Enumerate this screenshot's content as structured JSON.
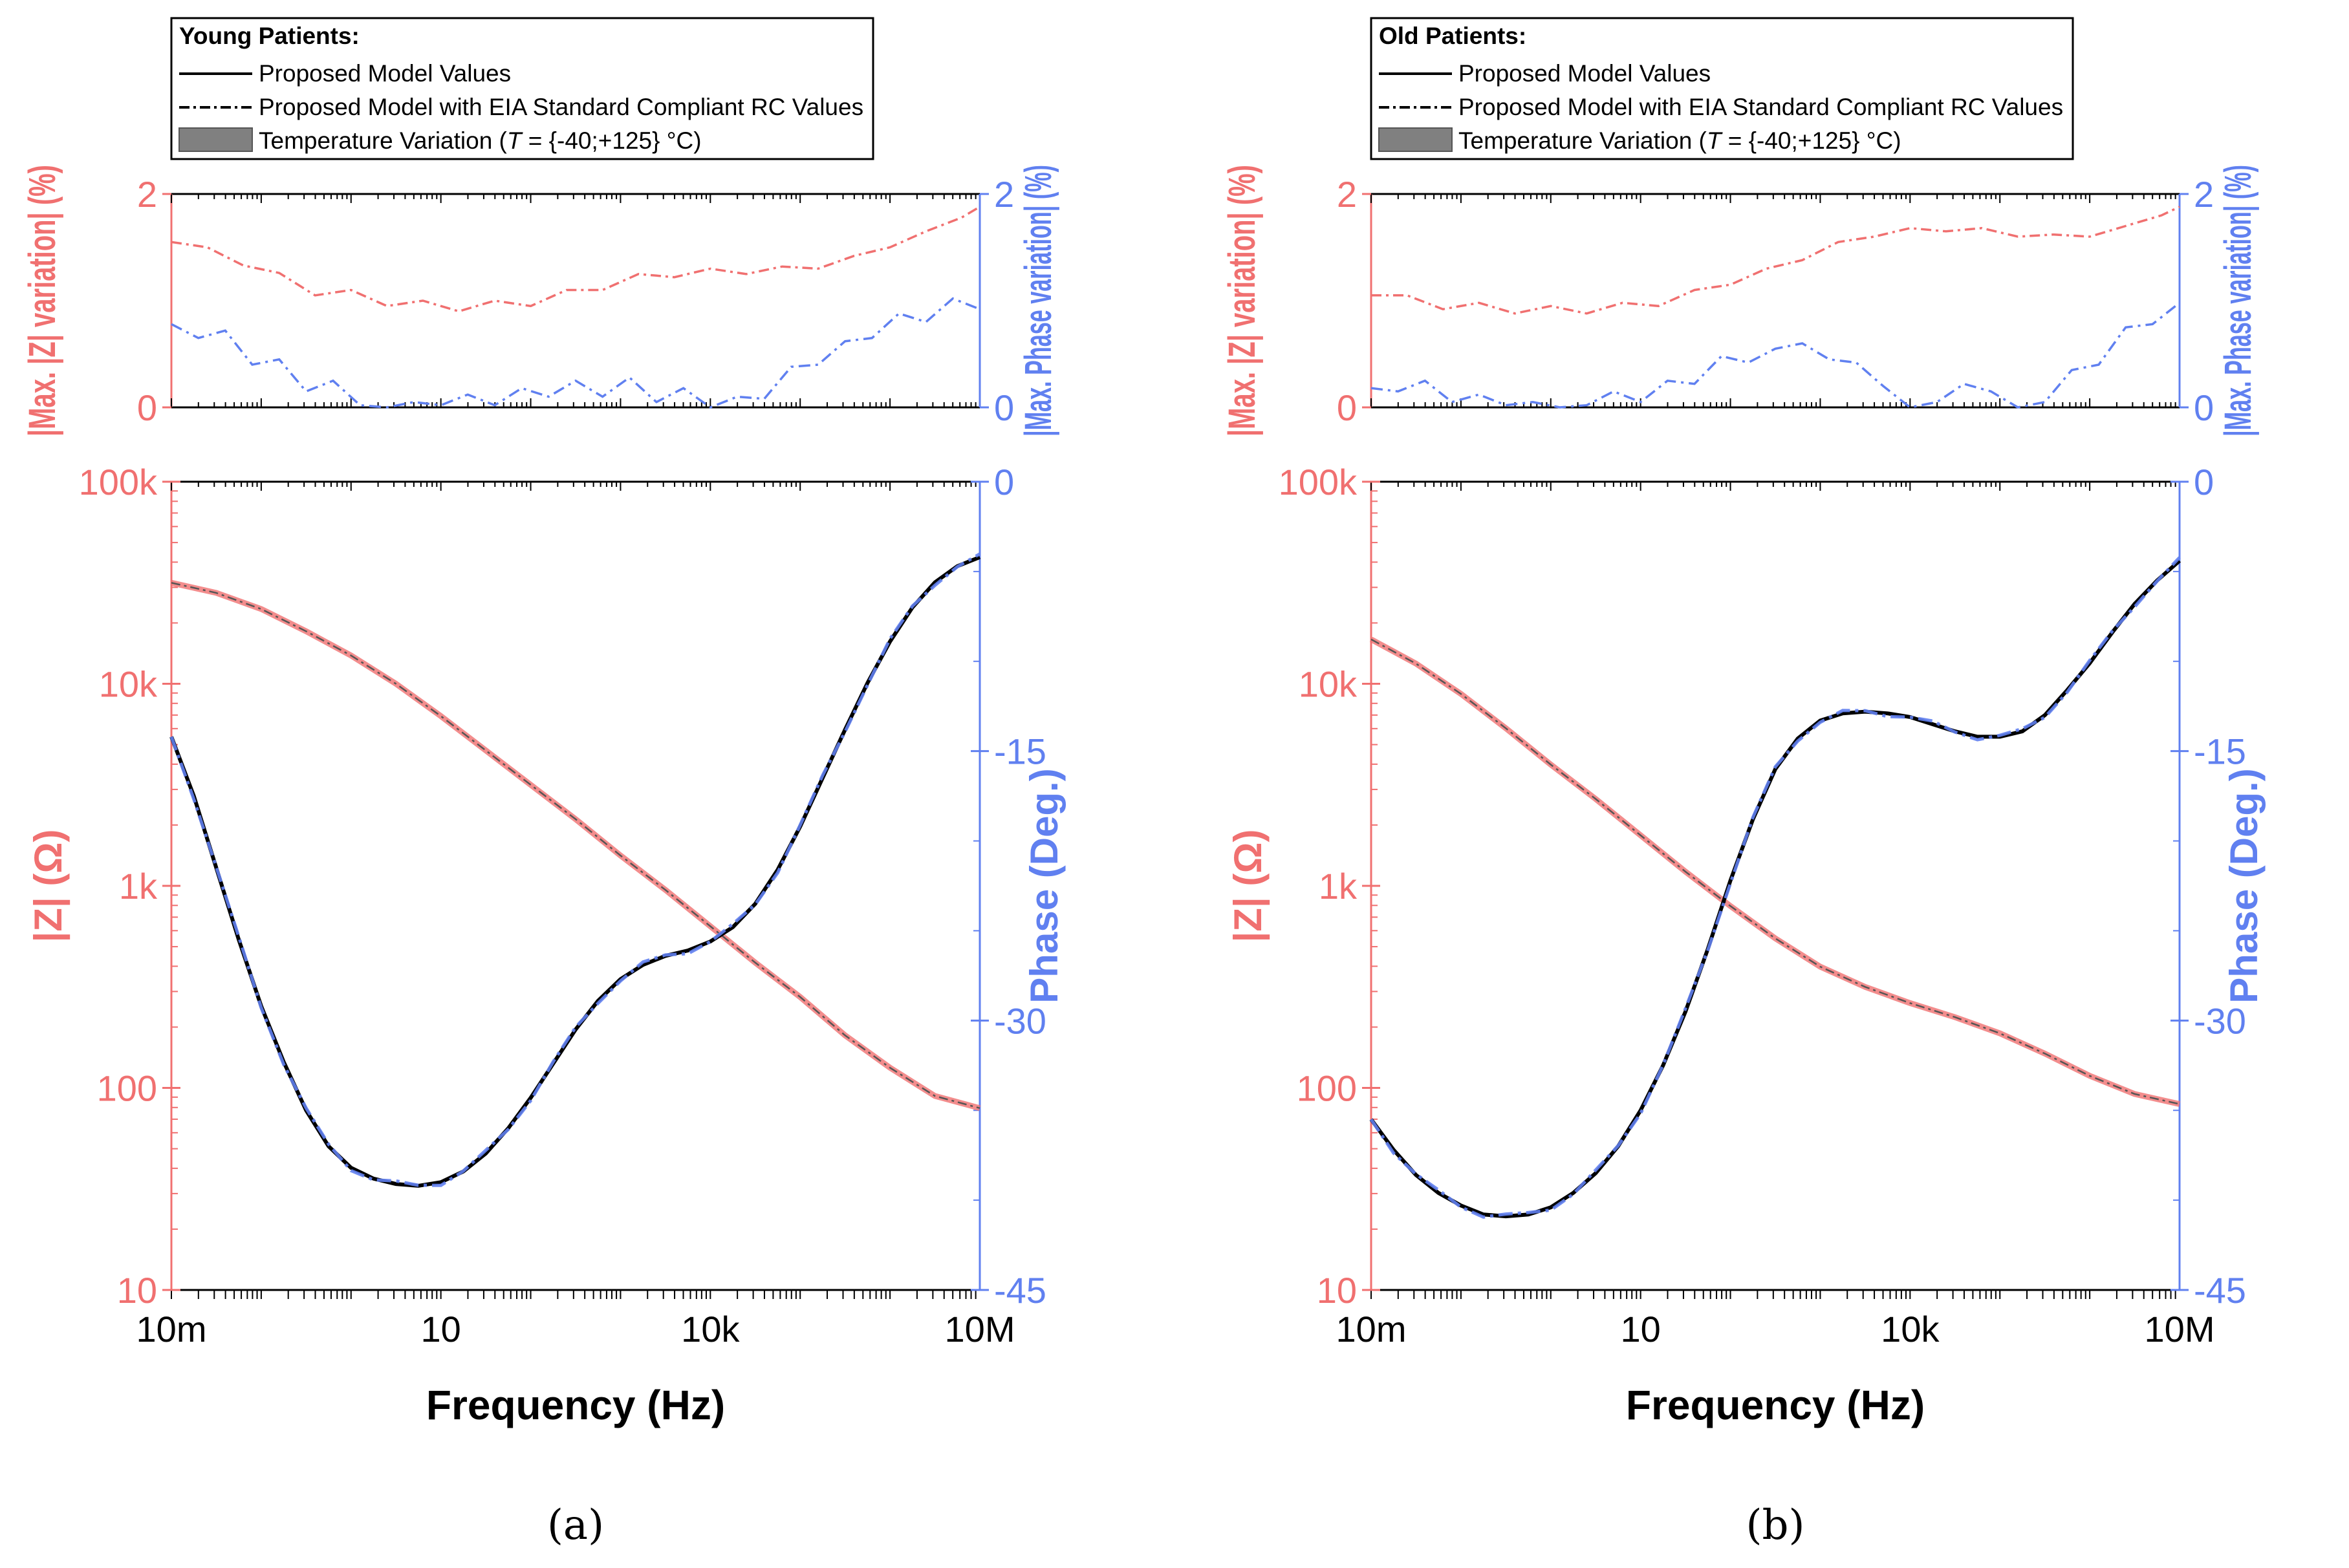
{
  "colors": {
    "magnitude": "#f07070",
    "phase": "#6080f0",
    "model": "#000000",
    "shade": "#808080",
    "frame": "#000000"
  },
  "chart_data": [
    {
      "type": "line",
      "panel_caption": "(a)",
      "legend": {
        "title": "Young Patients:",
        "entries": [
          "Proposed Model Values",
          "Proposed Model with EIA Standard Compliant RC Values"
        ],
        "temp_prefix": "Temperature Variation (",
        "temp_var": "T",
        "temp_suffix": " = {-40;+125} °C)"
      },
      "xlabel": "Frequency (Hz)",
      "x_log_range": [
        -2,
        7
      ],
      "x_ticks": [
        {
          "v": -2,
          "label": "10m"
        },
        {
          "v": 1,
          "label": "10"
        },
        {
          "v": 4,
          "label": "10k"
        },
        {
          "v": 7,
          "label": "10M"
        }
      ],
      "top": {
        "ylabel_left": "|Max. |Z| variation| (%)",
        "ylabel_right": "|Max. Phase variation| (%)",
        "ylim": [
          0,
          2
        ],
        "ticks": [
          "0",
          "2"
        ],
        "magnitude_variation": [
          [
            -2,
            1.55
          ],
          [
            -1.6,
            1.5
          ],
          [
            -1.2,
            1.33
          ],
          [
            -0.8,
            1.26
          ],
          [
            -0.4,
            1.05
          ],
          [
            0,
            1.1
          ],
          [
            0.4,
            0.95
          ],
          [
            0.8,
            1.0
          ],
          [
            1.2,
            0.9
          ],
          [
            1.6,
            1.0
          ],
          [
            2,
            0.95
          ],
          [
            2.4,
            1.1
          ],
          [
            2.8,
            1.1
          ],
          [
            3.2,
            1.25
          ],
          [
            3.6,
            1.22
          ],
          [
            4,
            1.3
          ],
          [
            4.4,
            1.25
          ],
          [
            4.8,
            1.32
          ],
          [
            5.2,
            1.3
          ],
          [
            5.6,
            1.42
          ],
          [
            6,
            1.5
          ],
          [
            6.4,
            1.65
          ],
          [
            6.8,
            1.78
          ],
          [
            7,
            1.88
          ]
        ],
        "phase_variation": [
          [
            -2,
            0.78
          ],
          [
            -1.7,
            0.65
          ],
          [
            -1.4,
            0.72
          ],
          [
            -1.1,
            0.4
          ],
          [
            -0.8,
            0.45
          ],
          [
            -0.5,
            0.15
          ],
          [
            -0.2,
            0.25
          ],
          [
            0.1,
            0.02
          ],
          [
            0.4,
            0.0
          ],
          [
            0.7,
            0.05
          ],
          [
            1,
            0.02
          ],
          [
            1.3,
            0.12
          ],
          [
            1.6,
            0.02
          ],
          [
            1.9,
            0.18
          ],
          [
            2.2,
            0.1
          ],
          [
            2.5,
            0.25
          ],
          [
            2.8,
            0.1
          ],
          [
            3.1,
            0.28
          ],
          [
            3.4,
            0.05
          ],
          [
            3.7,
            0.18
          ],
          [
            4,
            0.0
          ],
          [
            4.3,
            0.1
          ],
          [
            4.6,
            0.08
          ],
          [
            4.9,
            0.38
          ],
          [
            5.2,
            0.4
          ],
          [
            5.5,
            0.62
          ],
          [
            5.8,
            0.65
          ],
          [
            6.1,
            0.88
          ],
          [
            6.4,
            0.8
          ],
          [
            6.7,
            1.02
          ],
          [
            7,
            0.92
          ]
        ]
      },
      "bottom": {
        "ylabel_left": "|Z| (Ω)",
        "ylabel_right": "Phase (Deg.)",
        "z_log_range": [
          1,
          5
        ],
        "z_ticks": [
          {
            "v": 1,
            "label": "10"
          },
          {
            "v": 2,
            "label": "100"
          },
          {
            "v": 3,
            "label": "1k"
          },
          {
            "v": 4,
            "label": "10k"
          },
          {
            "v": 5,
            "label": "100k"
          }
        ],
        "phase_range": [
          -45,
          0
        ],
        "phase_ticks": [
          "0",
          "-15",
          "-30",
          "-45"
        ],
        "magnitude_log": [
          [
            -2,
            4.5
          ],
          [
            -1.5,
            4.45
          ],
          [
            -1,
            4.37
          ],
          [
            -0.5,
            4.26
          ],
          [
            0,
            4.14
          ],
          [
            0.5,
            4.0
          ],
          [
            1,
            3.84
          ],
          [
            1.5,
            3.67
          ],
          [
            2,
            3.5
          ],
          [
            2.5,
            3.33
          ],
          [
            3,
            3.15
          ],
          [
            3.5,
            2.98
          ],
          [
            4,
            2.8
          ],
          [
            4.5,
            2.62
          ],
          [
            5,
            2.45
          ],
          [
            5.5,
            2.26
          ],
          [
            6,
            2.1
          ],
          [
            6.5,
            1.96
          ],
          [
            7,
            1.9
          ]
        ],
        "phase": [
          [
            -2,
            -14.2
          ],
          [
            -1.75,
            -17.5
          ],
          [
            -1.5,
            -21.5
          ],
          [
            -1.25,
            -25.5
          ],
          [
            -1,
            -29.2
          ],
          [
            -0.75,
            -32.3
          ],
          [
            -0.5,
            -35.0
          ],
          [
            -0.25,
            -37.0
          ],
          [
            0,
            -38.2
          ],
          [
            0.25,
            -38.8
          ],
          [
            0.5,
            -39.1
          ],
          [
            0.75,
            -39.2
          ],
          [
            1,
            -39.0
          ],
          [
            1.25,
            -38.4
          ],
          [
            1.5,
            -37.4
          ],
          [
            1.75,
            -36.0
          ],
          [
            2,
            -34.3
          ],
          [
            2.25,
            -32.4
          ],
          [
            2.5,
            -30.5
          ],
          [
            2.75,
            -28.9
          ],
          [
            3,
            -27.7
          ],
          [
            3.25,
            -26.9
          ],
          [
            3.5,
            -26.4
          ],
          [
            3.75,
            -26.1
          ],
          [
            4,
            -25.6
          ],
          [
            4.25,
            -24.8
          ],
          [
            4.5,
            -23.5
          ],
          [
            4.75,
            -21.6
          ],
          [
            5,
            -19.2
          ],
          [
            5.25,
            -16.5
          ],
          [
            5.5,
            -13.8
          ],
          [
            5.75,
            -11.2
          ],
          [
            6,
            -8.9
          ],
          [
            6.25,
            -7.0
          ],
          [
            6.5,
            -5.6
          ],
          [
            6.75,
            -4.7
          ],
          [
            7,
            -4.2
          ]
        ]
      }
    },
    {
      "type": "line",
      "panel_caption": "(b)",
      "legend": {
        "title": "Old Patients:",
        "entries": [
          "Proposed Model Values",
          "Proposed Model with EIA Standard Compliant RC Values"
        ],
        "temp_prefix": "Temperature Variation (",
        "temp_var": "T",
        "temp_suffix": " = {-40;+125} °C)"
      },
      "xlabel": "Frequency (Hz)",
      "x_log_range": [
        -2,
        7
      ],
      "x_ticks": [
        {
          "v": -2,
          "label": "10m"
        },
        {
          "v": 1,
          "label": "10"
        },
        {
          "v": 4,
          "label": "10k"
        },
        {
          "v": 7,
          "label": "10M"
        }
      ],
      "top": {
        "ylabel_left": "|Max. |Z| variation| (%)",
        "ylabel_right": "|Max. Phase variation| (%)",
        "ylim": [
          0,
          2
        ],
        "ticks": [
          "0",
          "2"
        ],
        "magnitude_variation": [
          [
            -2,
            1.05
          ],
          [
            -1.6,
            1.05
          ],
          [
            -1.2,
            0.92
          ],
          [
            -0.8,
            0.98
          ],
          [
            -0.4,
            0.88
          ],
          [
            0,
            0.95
          ],
          [
            0.4,
            0.88
          ],
          [
            0.8,
            0.98
          ],
          [
            1.2,
            0.95
          ],
          [
            1.6,
            1.1
          ],
          [
            2,
            1.15
          ],
          [
            2.4,
            1.3
          ],
          [
            2.8,
            1.38
          ],
          [
            3.2,
            1.55
          ],
          [
            3.6,
            1.6
          ],
          [
            4,
            1.68
          ],
          [
            4.4,
            1.65
          ],
          [
            4.8,
            1.68
          ],
          [
            5.2,
            1.6
          ],
          [
            5.6,
            1.62
          ],
          [
            6,
            1.6
          ],
          [
            6.4,
            1.7
          ],
          [
            6.8,
            1.8
          ],
          [
            7,
            1.88
          ]
        ],
        "phase_variation": [
          [
            -2,
            0.18
          ],
          [
            -1.7,
            0.15
          ],
          [
            -1.4,
            0.25
          ],
          [
            -1.1,
            0.05
          ],
          [
            -0.8,
            0.12
          ],
          [
            -0.5,
            0.02
          ],
          [
            -0.2,
            0.05
          ],
          [
            0.1,
            0.0
          ],
          [
            0.4,
            0.02
          ],
          [
            0.7,
            0.15
          ],
          [
            1,
            0.05
          ],
          [
            1.3,
            0.25
          ],
          [
            1.6,
            0.22
          ],
          [
            1.9,
            0.48
          ],
          [
            2.2,
            0.42
          ],
          [
            2.5,
            0.55
          ],
          [
            2.8,
            0.6
          ],
          [
            3.1,
            0.45
          ],
          [
            3.4,
            0.42
          ],
          [
            3.7,
            0.2
          ],
          [
            4,
            0.0
          ],
          [
            4.3,
            0.05
          ],
          [
            4.6,
            0.22
          ],
          [
            4.9,
            0.15
          ],
          [
            5.2,
            0.0
          ],
          [
            5.5,
            0.05
          ],
          [
            5.8,
            0.35
          ],
          [
            6.1,
            0.4
          ],
          [
            6.4,
            0.75
          ],
          [
            6.7,
            0.78
          ],
          [
            7,
            0.98
          ]
        ]
      },
      "bottom": {
        "ylabel_left": "|Z| (Ω)",
        "ylabel_right": "Phase (Deg.)",
        "z_log_range": [
          1,
          5
        ],
        "z_ticks": [
          {
            "v": 1,
            "label": "10"
          },
          {
            "v": 2,
            "label": "100"
          },
          {
            "v": 3,
            "label": "1k"
          },
          {
            "v": 4,
            "label": "10k"
          },
          {
            "v": 5,
            "label": "100k"
          }
        ],
        "phase_range": [
          -45,
          0
        ],
        "phase_ticks": [
          "0",
          "-15",
          "-30",
          "-45"
        ],
        "magnitude_log": [
          [
            -2,
            4.22
          ],
          [
            -1.5,
            4.1
          ],
          [
            -1,
            3.95
          ],
          [
            -0.5,
            3.78
          ],
          [
            0,
            3.6
          ],
          [
            0.5,
            3.43
          ],
          [
            1,
            3.25
          ],
          [
            1.5,
            3.07
          ],
          [
            2,
            2.9
          ],
          [
            2.5,
            2.74
          ],
          [
            3,
            2.6
          ],
          [
            3.5,
            2.5
          ],
          [
            4,
            2.42
          ],
          [
            4.5,
            2.35
          ],
          [
            5,
            2.27
          ],
          [
            5.5,
            2.17
          ],
          [
            6,
            2.06
          ],
          [
            6.5,
            1.97
          ],
          [
            7,
            1.92
          ]
        ],
        "phase": [
          [
            -2,
            -35.5
          ],
          [
            -1.75,
            -37.2
          ],
          [
            -1.5,
            -38.6
          ],
          [
            -1.25,
            -39.6
          ],
          [
            -1,
            -40.3
          ],
          [
            -0.75,
            -40.8
          ],
          [
            -0.5,
            -40.9
          ],
          [
            -0.25,
            -40.8
          ],
          [
            0,
            -40.4
          ],
          [
            0.25,
            -39.6
          ],
          [
            0.5,
            -38.5
          ],
          [
            0.75,
            -37.0
          ],
          [
            1,
            -35.0
          ],
          [
            1.25,
            -32.5
          ],
          [
            1.5,
            -29.5
          ],
          [
            1.75,
            -26.0
          ],
          [
            2,
            -22.2
          ],
          [
            2.25,
            -18.8
          ],
          [
            2.5,
            -16.0
          ],
          [
            2.75,
            -14.3
          ],
          [
            3,
            -13.3
          ],
          [
            3.25,
            -12.9
          ],
          [
            3.5,
            -12.8
          ],
          [
            3.75,
            -12.9
          ],
          [
            4,
            -13.1
          ],
          [
            4.25,
            -13.5
          ],
          [
            4.5,
            -13.9
          ],
          [
            4.75,
            -14.2
          ],
          [
            5,
            -14.2
          ],
          [
            5.25,
            -13.9
          ],
          [
            5.5,
            -13.0
          ],
          [
            5.75,
            -11.6
          ],
          [
            6,
            -10.1
          ],
          [
            6.25,
            -8.4
          ],
          [
            6.5,
            -6.8
          ],
          [
            6.75,
            -5.5
          ],
          [
            7,
            -4.4
          ]
        ]
      }
    }
  ]
}
